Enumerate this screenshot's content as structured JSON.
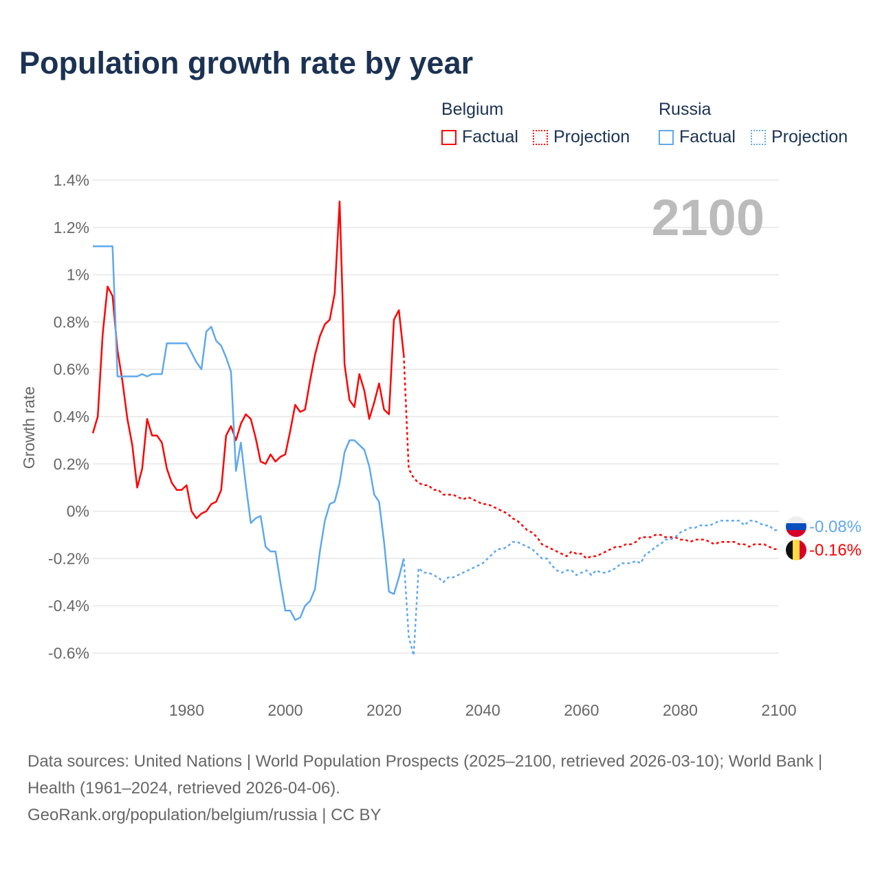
{
  "title": "Population growth rate by year",
  "legend": {
    "groups": [
      {
        "name": "Belgium",
        "color": "#ff0000",
        "factual": "Factual",
        "projection": "Projection"
      },
      {
        "name": "Russia",
        "color": "#5ea8ee",
        "factual": "Factual",
        "projection": "Projection"
      }
    ]
  },
  "footer": {
    "line1": "Data sources: United Nations | World Population Prospects (2025–2100, retrieved 2026-03-10); World Bank | Health (1961–2024, retrieved 2026-04-06).",
    "line2": "GeoRank.org/population/belgium/russia | CC BY"
  },
  "chart_data": {
    "type": "line",
    "title": "Population growth rate by year",
    "ylabel": "Growth rate",
    "xlabel": "",
    "year_label": "2100",
    "xlim": [
      1961,
      2100
    ],
    "ylim": [
      -0.6,
      1.4
    ],
    "x_ticks": [
      "1980",
      "2000",
      "2020",
      "2040",
      "2060",
      "2080",
      "2100"
    ],
    "y_ticks": [
      {
        "v": 1.4,
        "label": "1.4%"
      },
      {
        "v": 1.2,
        "label": "1.2%"
      },
      {
        "v": 1.0,
        "label": "1%"
      },
      {
        "v": 0.8,
        "label": "0.8%"
      },
      {
        "v": 0.6,
        "label": "0.6%"
      },
      {
        "v": 0.4,
        "label": "0.4%"
      },
      {
        "v": 0.2,
        "label": "0.2%"
      },
      {
        "v": 0,
        "label": "0%"
      },
      {
        "v": -0.2,
        "label": "-0.2%"
      },
      {
        "v": -0.4,
        "label": "-0.4%"
      },
      {
        "v": -0.6,
        "label": "-0.6%"
      }
    ],
    "grid": true,
    "series": [
      {
        "name": "Belgium Factual",
        "country": "Belgium",
        "kind": "factual",
        "color": "#ff0000",
        "start": 1961,
        "values": [
          0.33,
          0.4,
          0.75,
          0.95,
          0.91,
          0.68,
          0.55,
          0.39,
          0.28,
          0.1,
          0.18,
          0.39,
          0.32,
          0.32,
          0.29,
          0.18,
          0.12,
          0.09,
          0.09,
          0.11,
          0.0,
          -0.03,
          -0.01,
          0.0,
          0.03,
          0.04,
          0.09,
          0.32,
          0.36,
          0.3,
          0.37,
          0.41,
          0.39,
          0.31,
          0.21,
          0.2,
          0.24,
          0.21,
          0.23,
          0.24,
          0.34,
          0.45,
          0.42,
          0.43,
          0.55,
          0.66,
          0.74,
          0.79,
          0.81,
          0.92,
          1.31,
          0.62,
          0.47,
          0.44,
          0.58,
          0.51,
          0.39,
          0.46,
          0.54,
          0.43,
          0.41,
          0.81,
          0.85,
          0.66
        ]
      },
      {
        "name": "Belgium Projection",
        "country": "Belgium",
        "kind": "projection",
        "color": "#ff0000",
        "start": 2024,
        "values": [
          0.66,
          0.18,
          0.14,
          0.12,
          0.11,
          0.11,
          0.09,
          0.09,
          0.07,
          0.07,
          0.07,
          0.06,
          0.05,
          0.06,
          0.05,
          0.04,
          0.03,
          0.03,
          0.02,
          0.01,
          0.0,
          -0.01,
          -0.03,
          -0.04,
          -0.06,
          -0.08,
          -0.09,
          -0.11,
          -0.14,
          -0.15,
          -0.16,
          -0.17,
          -0.18,
          -0.19,
          -0.17,
          -0.18,
          -0.18,
          -0.2,
          -0.19,
          -0.19,
          -0.18,
          -0.17,
          -0.16,
          -0.15,
          -0.15,
          -0.14,
          -0.14,
          -0.13,
          -0.11,
          -0.11,
          -0.11,
          -0.1,
          -0.1,
          -0.11,
          -0.11,
          -0.11,
          -0.12,
          -0.12,
          -0.13,
          -0.12,
          -0.12,
          -0.12,
          -0.13,
          -0.14,
          -0.13,
          -0.13,
          -0.13,
          -0.13,
          -0.14,
          -0.14,
          -0.15,
          -0.14,
          -0.14,
          -0.14,
          -0.15,
          -0.16,
          -0.16
        ]
      },
      {
        "name": "Russia Factual",
        "country": "Russia",
        "kind": "factual",
        "color": "#5ea8ee",
        "start": 1961,
        "values": [
          1.12,
          1.12,
          1.12,
          1.12,
          1.12,
          0.57,
          0.57,
          0.57,
          0.57,
          0.57,
          0.58,
          0.57,
          0.58,
          0.58,
          0.58,
          0.71,
          0.71,
          0.71,
          0.71,
          0.71,
          0.67,
          0.63,
          0.6,
          0.76,
          0.78,
          0.72,
          0.7,
          0.65,
          0.59,
          0.17,
          0.29,
          0.11,
          -0.05,
          -0.03,
          -0.02,
          -0.15,
          -0.17,
          -0.17,
          -0.3,
          -0.42,
          -0.42,
          -0.46,
          -0.45,
          -0.4,
          -0.38,
          -0.33,
          -0.17,
          -0.04,
          0.03,
          0.04,
          0.12,
          0.25,
          0.3,
          0.3,
          0.28,
          0.26,
          0.19,
          0.07,
          0.04,
          -0.13,
          -0.34,
          -0.35,
          -0.28,
          -0.2
        ]
      },
      {
        "name": "Russia Projection",
        "country": "Russia",
        "kind": "projection",
        "color": "#5ea8ee",
        "start": 2024,
        "values": [
          -0.2,
          -0.53,
          -0.61,
          -0.24,
          -0.26,
          -0.26,
          -0.27,
          -0.28,
          -0.3,
          -0.28,
          -0.28,
          -0.27,
          -0.26,
          -0.25,
          -0.24,
          -0.23,
          -0.22,
          -0.2,
          -0.18,
          -0.16,
          -0.16,
          -0.15,
          -0.13,
          -0.13,
          -0.14,
          -0.15,
          -0.16,
          -0.18,
          -0.2,
          -0.2,
          -0.23,
          -0.25,
          -0.26,
          -0.25,
          -0.25,
          -0.27,
          -0.26,
          -0.25,
          -0.27,
          -0.25,
          -0.26,
          -0.26,
          -0.25,
          -0.24,
          -0.22,
          -0.22,
          -0.22,
          -0.21,
          -0.22,
          -0.18,
          -0.17,
          -0.15,
          -0.14,
          -0.12,
          -0.12,
          -0.11,
          -0.09,
          -0.08,
          -0.07,
          -0.07,
          -0.06,
          -0.06,
          -0.06,
          -0.05,
          -0.04,
          -0.04,
          -0.04,
          -0.04,
          -0.04,
          -0.06,
          -0.04,
          -0.04,
          -0.05,
          -0.06,
          -0.06,
          -0.08,
          -0.08
        ]
      }
    ],
    "end_labels": [
      {
        "country": "Russia",
        "label": "-0.08%",
        "value": -0.08,
        "color": "#5ea8ee"
      },
      {
        "country": "Belgium",
        "label": "-0.16%",
        "value": -0.16,
        "color": "#ff0000"
      }
    ]
  }
}
